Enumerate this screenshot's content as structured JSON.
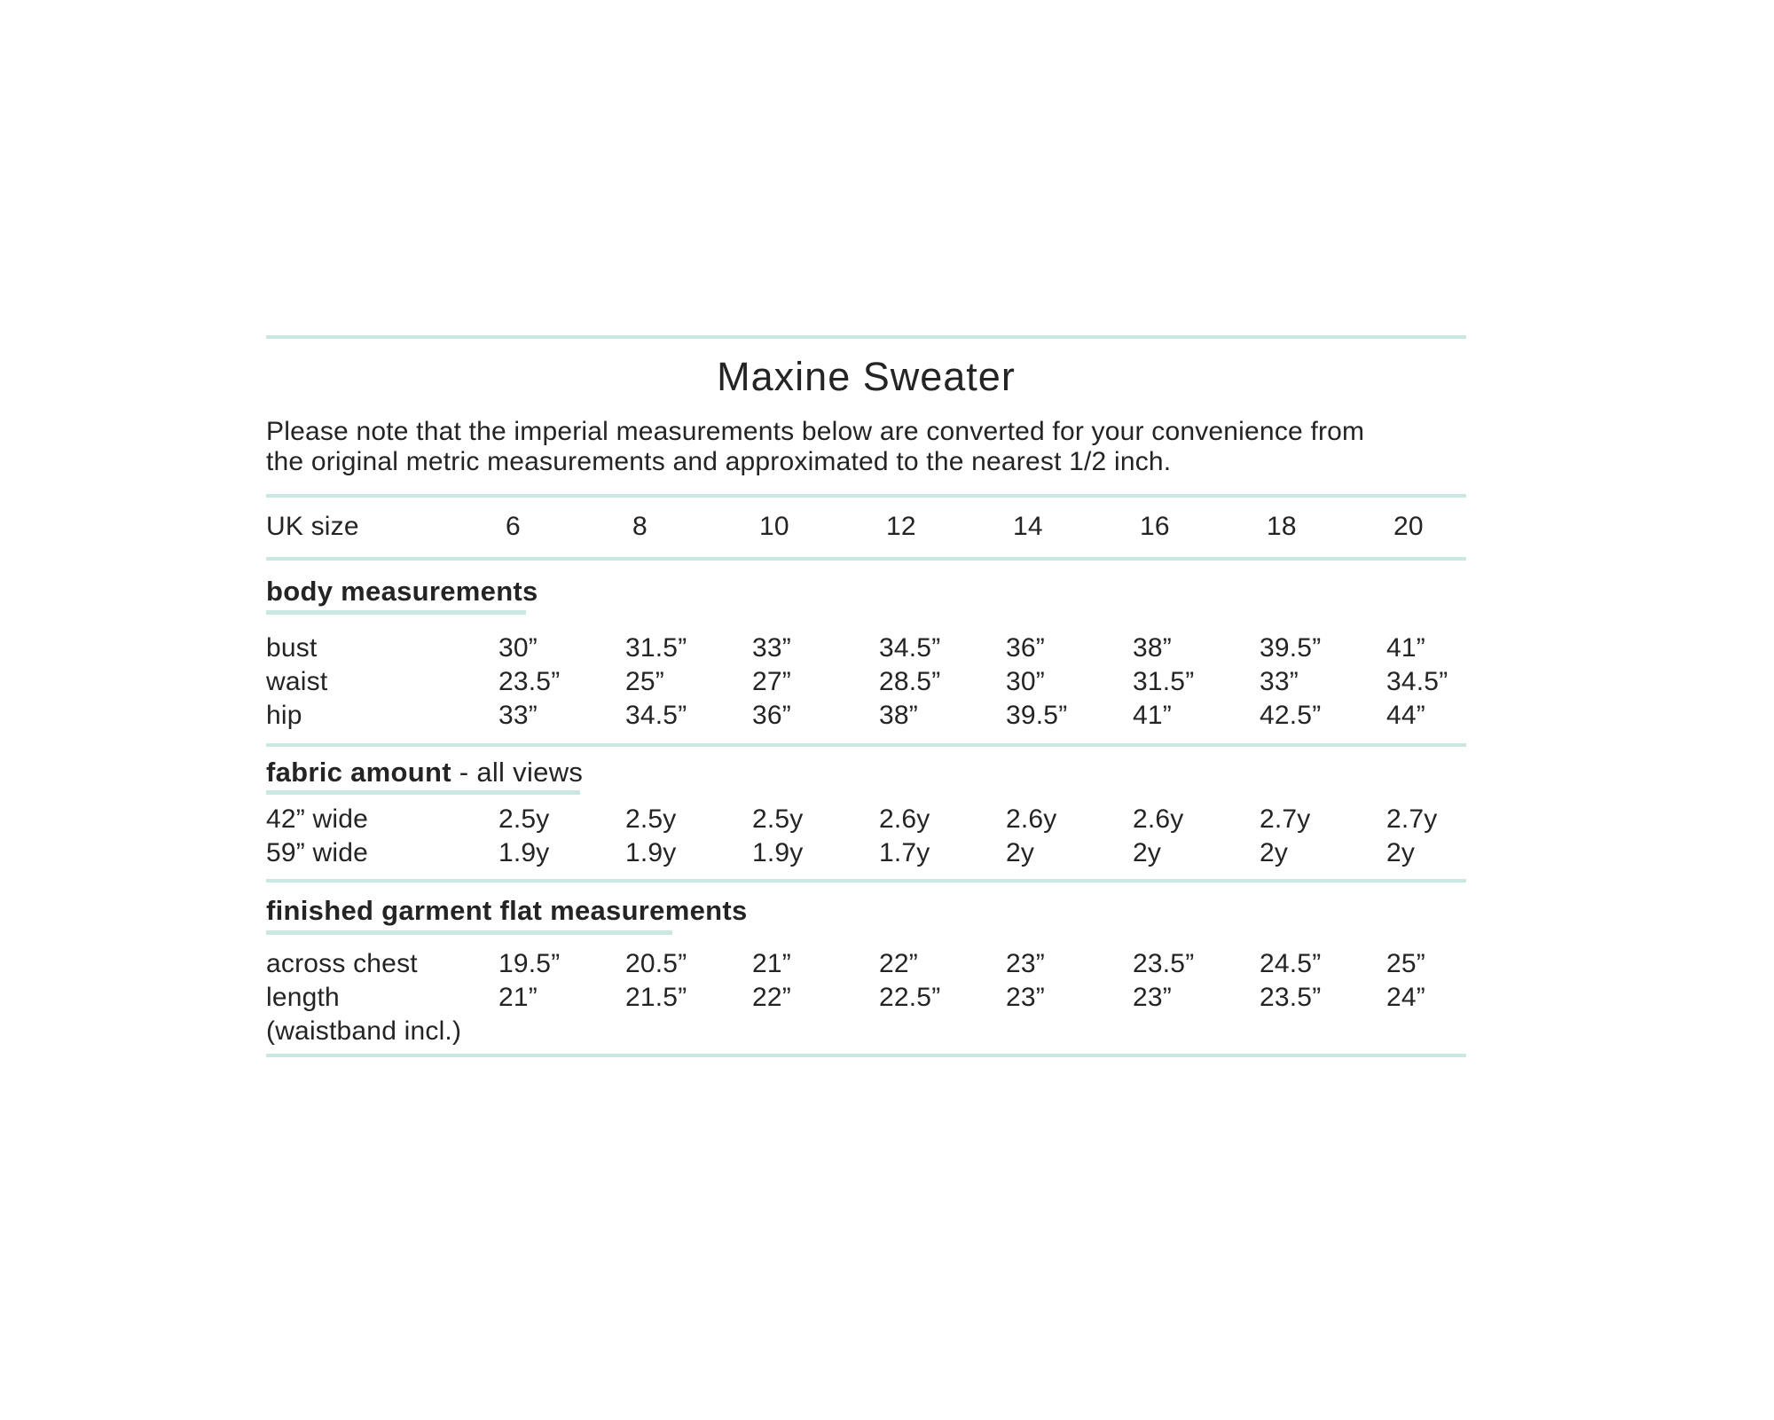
{
  "title": "Maxine Sweater",
  "note_lines": [
    "Please note that the imperial measurements below are converted for your convenience from",
    "the original metric measurements and approximated to the nearest 1/2 inch."
  ],
  "colors": {
    "accent": "#c9e8e2",
    "text": "#242424"
  },
  "size_header": {
    "label": "UK size",
    "sizes": [
      "6",
      "8",
      "10",
      "12",
      "14",
      "16",
      "18",
      "20"
    ]
  },
  "body_measurements": {
    "heading": "body measurements",
    "rows": [
      {
        "label": "bust",
        "values": [
          "30”",
          "31.5”",
          "33”",
          "34.5”",
          "36”",
          "38”",
          "39.5”",
          "41”"
        ]
      },
      {
        "label": "waist",
        "values": [
          "23.5”",
          "25”",
          "27”",
          "28.5”",
          "30”",
          "31.5”",
          "33”",
          "34.5”"
        ]
      },
      {
        "label": "hip",
        "values": [
          "33”",
          "34.5”",
          "36”",
          "38”",
          "39.5”",
          "41”",
          "42.5”",
          "44”"
        ]
      }
    ]
  },
  "fabric_amount": {
    "heading_bold": "fabric amount",
    "heading_suffix": "- all views",
    "rows": [
      {
        "label": "42” wide",
        "values": [
          "2.5y",
          "2.5y",
          "2.5y",
          "2.6y",
          "2.6y",
          "2.6y",
          "2.7y",
          "2.7y"
        ]
      },
      {
        "label": "59” wide",
        "values": [
          "1.9y",
          "1.9y",
          "1.9y",
          "1.7y",
          "2y",
          "2y",
          "2y",
          "2y"
        ]
      }
    ]
  },
  "finished_garment": {
    "heading": "finished garment flat measurements",
    "rows": [
      {
        "label": "across chest",
        "label_note": "",
        "values": [
          "19.5”",
          "20.5”",
          "21”",
          "22”",
          "23”",
          "23.5”",
          "24.5”",
          "25”"
        ]
      },
      {
        "label": "length",
        "label_note": "(waistband incl.)",
        "values": [
          "21”",
          "21.5”",
          "22”",
          "22.5”",
          "23”",
          "23”",
          "23.5”",
          "24”"
        ]
      }
    ]
  }
}
